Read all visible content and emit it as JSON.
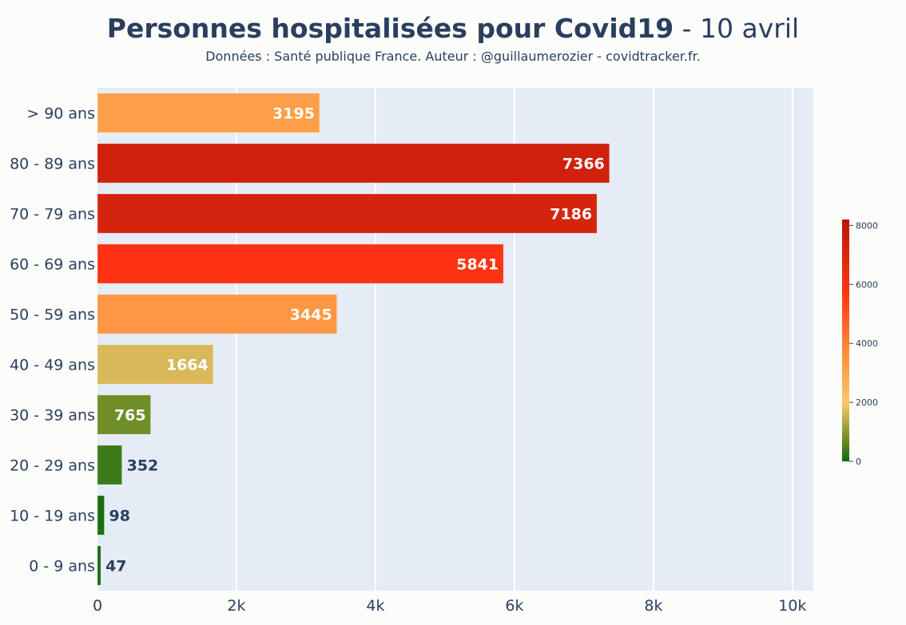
{
  "title": {
    "bold": "Personnes hospitalisées pour Covid19",
    "date": "- 10 avril"
  },
  "subtitle": "Données : Santé publique France. Auteur : @guillaumerozier - covidtracker.fr.",
  "chart_data": {
    "type": "bar",
    "orientation": "horizontal",
    "categories": [
      "> 90 ans",
      "80 - 89 ans",
      "70 - 79 ans",
      "60 - 69 ans",
      "50 - 59 ans",
      "40 - 49 ans",
      "30 - 39 ans",
      "20 - 29 ans",
      "10 - 19 ans",
      "0 - 9 ans"
    ],
    "values": [
      3195,
      7366,
      7186,
      5841,
      3445,
      1664,
      765,
      352,
      98,
      47
    ],
    "xlim": [
      0,
      10300
    ],
    "xticks": [
      {
        "value": 0,
        "label": "0"
      },
      {
        "value": 2000,
        "label": "2k"
      },
      {
        "value": 4000,
        "label": "4k"
      },
      {
        "value": 6000,
        "label": "6k"
      },
      {
        "value": 8000,
        "label": "8k"
      },
      {
        "value": 10000,
        "label": "10k"
      }
    ],
    "grid": true,
    "colorscale": {
      "range": [
        0,
        8200
      ],
      "stops": [
        [
          0,
          "#0e6b0e"
        ],
        [
          0.1,
          "#76902a"
        ],
        [
          0.24,
          "#fdc66a"
        ],
        [
          0.45,
          "#fd8f3c"
        ],
        [
          0.7,
          "#ff3412"
        ],
        [
          1,
          "#b8180a"
        ]
      ],
      "ticks": [
        {
          "value": 0,
          "label": "0"
        },
        {
          "value": 2000,
          "label": "2000"
        },
        {
          "value": 4000,
          "label": "4000"
        },
        {
          "value": 6000,
          "label": "6000"
        },
        {
          "value": 8000,
          "label": "8000"
        }
      ]
    },
    "colors": {
      "plot_bg": "#e5ecf6",
      "grid": "#ffffff",
      "text": "#2a3f5f"
    }
  }
}
